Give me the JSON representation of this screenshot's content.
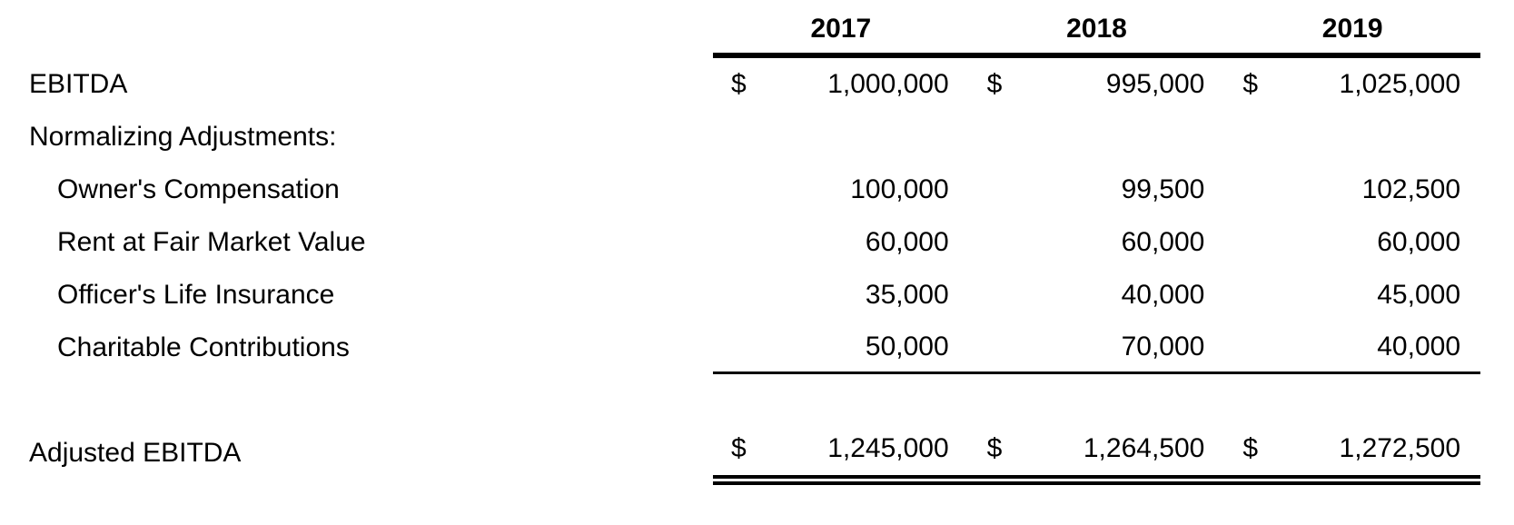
{
  "table": {
    "columns": [
      "2017",
      "2018",
      "2019"
    ],
    "rows": [
      {
        "label": "EBITDA",
        "currency": "$",
        "values": [
          "1,000,000",
          "995,000",
          "1,025,000"
        ]
      },
      {
        "label": "Normalizing Adjustments:",
        "currency": "",
        "values": [
          "",
          "",
          ""
        ]
      },
      {
        "label": "Owner's Compensation",
        "currency": "",
        "values": [
          "100,000",
          "99,500",
          "102,500"
        ]
      },
      {
        "label": "Rent at Fair Market Value",
        "currency": "",
        "values": [
          "60,000",
          "60,000",
          "60,000"
        ]
      },
      {
        "label": "Officer's Life Insurance",
        "currency": "",
        "values": [
          "35,000",
          "40,000",
          "45,000"
        ]
      },
      {
        "label": "Charitable Contributions",
        "currency": "",
        "values": [
          "50,000",
          "70,000",
          "40,000"
        ]
      }
    ],
    "total_row": {
      "label": "Adjusted EBITDA",
      "currency": "$",
      "values": [
        "1,245,000",
        "1,264,500",
        "1,272,500"
      ]
    }
  },
  "colors": {
    "background": "#ffffff",
    "text": "#000000",
    "rule": "#000000"
  }
}
